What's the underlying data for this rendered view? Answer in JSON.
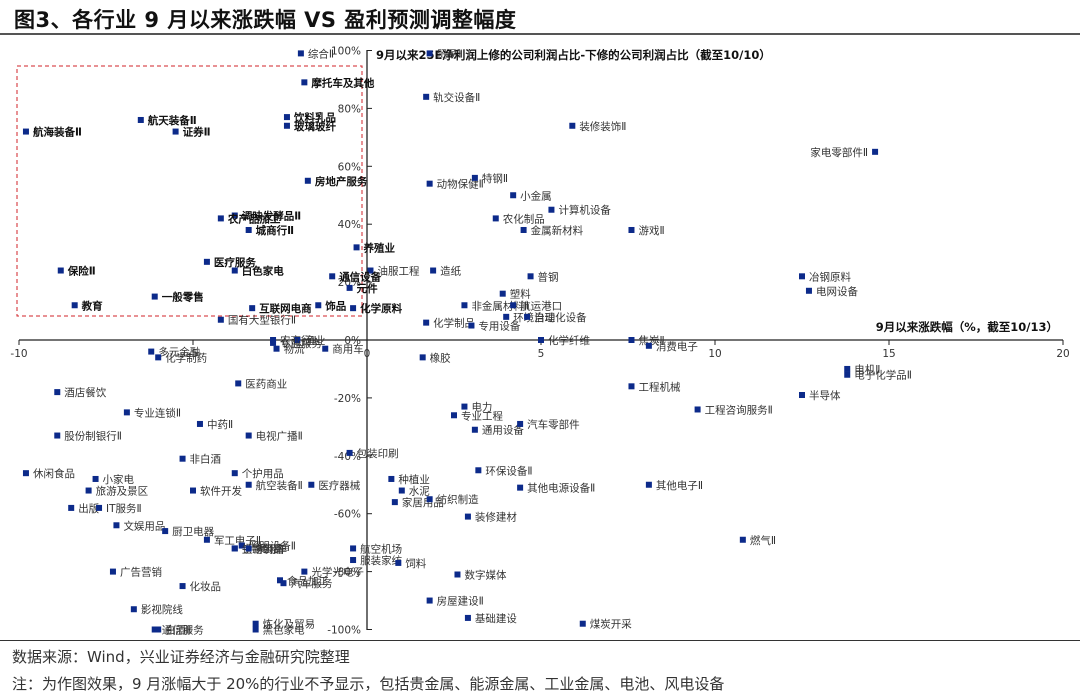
{
  "figure": {
    "title": "图3、各行业 9 月以来涨跌幅 VS 盈利预测调整幅度",
    "source": "数据来源：Wind，兴业证券经济与金融研究院整理",
    "note": "注：为作图效果，9 月涨幅大于 20%的行业不予显示，包括贵金属、能源金属、工业金属、电池、风电设备"
  },
  "chart_data": {
    "type": "scatter",
    "title": "图3、各行业 9 月以来涨跌幅 VS 盈利预测调整幅度",
    "xlabel": "9月以来涨跌幅（%，截至10/13）",
    "ylabel": "9月以来25E净利润上修的公司利润占比-下修的公司利润占比（截至10/10）",
    "xlim": [
      -10,
      20
    ],
    "ylim": [
      -100,
      100
    ],
    "xticks": [
      "-10",
      "-5",
      "0",
      "5",
      "10",
      "15",
      "20"
    ],
    "yticks": [
      "100%",
      "80%",
      "60%",
      "40%",
      "20%",
      "0%",
      "-20%",
      "-40%",
      "-60%",
      "-80%",
      "-100%"
    ],
    "grid": false,
    "legend": "none",
    "annotation": "red dashed box highlights industries with negative returns but positive earnings revisions (bold labels)",
    "points": [
      {
        "name": "综合Ⅱ",
        "x": -1.9,
        "y": 99,
        "bold": false
      },
      {
        "name": "贸易Ⅱ",
        "x": 1.8,
        "y": 99,
        "bold": false
      },
      {
        "name": "摩托车及其他",
        "x": -1.8,
        "y": 89,
        "bold": true
      },
      {
        "name": "饮料乳品",
        "x": -2.3,
        "y": 77,
        "bold": true
      },
      {
        "name": "玻璃玻纤",
        "x": -2.3,
        "y": 74,
        "bold": true
      },
      {
        "name": "航天装备Ⅱ",
        "x": -6.5,
        "y": 76,
        "bold": true
      },
      {
        "name": "证券Ⅱ",
        "x": -5.5,
        "y": 72,
        "bold": true
      },
      {
        "name": "航海装备Ⅱ",
        "x": -9.8,
        "y": 72,
        "bold": true
      },
      {
        "name": "轨交设备Ⅱ",
        "x": 1.7,
        "y": 84,
        "bold": false
      },
      {
        "name": "装修装饰Ⅱ",
        "x": 5.9,
        "y": 74,
        "bold": false
      },
      {
        "name": "家电零部件Ⅱ",
        "x": 14.6,
        "y": 65,
        "bold": false
      },
      {
        "name": "房地产服务",
        "x": -1.7,
        "y": 55,
        "bold": true
      },
      {
        "name": "动物保健Ⅱ",
        "x": 1.8,
        "y": 54,
        "bold": false
      },
      {
        "name": "特钢Ⅱ",
        "x": 3.1,
        "y": 56,
        "bold": false
      },
      {
        "name": "小金属",
        "x": 4.2,
        "y": 50,
        "bold": false
      },
      {
        "name": "计算机设备",
        "x": 5.3,
        "y": 45,
        "bold": false
      },
      {
        "name": "农化制品",
        "x": 3.7,
        "y": 42,
        "bold": false
      },
      {
        "name": "金属新材料",
        "x": 4.5,
        "y": 38,
        "bold": false
      },
      {
        "name": "游戏Ⅱ",
        "x": 7.6,
        "y": 38,
        "bold": false
      },
      {
        "name": "调味发酵品Ⅱ",
        "x": -3.8,
        "y": 43,
        "bold": true
      },
      {
        "name": "农产品加工",
        "x": -4.2,
        "y": 42,
        "bold": true
      },
      {
        "name": "城商行Ⅱ",
        "x": -3.4,
        "y": 38,
        "bold": true
      },
      {
        "name": "养殖业",
        "x": -0.3,
        "y": 32,
        "bold": true
      },
      {
        "name": "油服工程",
        "x": 0.1,
        "y": 24,
        "bold": false
      },
      {
        "name": "造纸",
        "x": 1.9,
        "y": 24,
        "bold": false
      },
      {
        "name": "普钢",
        "x": 4.7,
        "y": 22,
        "bold": false
      },
      {
        "name": "冶钢原料",
        "x": 12.5,
        "y": 22,
        "bold": false
      },
      {
        "name": "电网设备",
        "x": 12.7,
        "y": 17,
        "bold": false
      },
      {
        "name": "医疗服务",
        "x": -4.6,
        "y": 27,
        "bold": true
      },
      {
        "name": "白色家电",
        "x": -3.8,
        "y": 24,
        "bold": true
      },
      {
        "name": "保险Ⅱ",
        "x": -8.8,
        "y": 24,
        "bold": true
      },
      {
        "name": "通信设备",
        "x": -1.0,
        "y": 22,
        "bold": true
      },
      {
        "name": "塑料",
        "x": 3.9,
        "y": 16,
        "bold": false
      },
      {
        "name": "非金属材料Ⅱ",
        "x": 2.8,
        "y": 12,
        "bold": false
      },
      {
        "name": "航运港口",
        "x": 4.2,
        "y": 12,
        "bold": false
      },
      {
        "name": "环境治理",
        "x": 4.0,
        "y": 8,
        "bold": false
      },
      {
        "name": "自动化设备",
        "x": 4.6,
        "y": 8,
        "bold": false
      },
      {
        "name": "一般零售",
        "x": -6.1,
        "y": 15,
        "bold": true
      },
      {
        "name": "互联网电商",
        "x": -3.3,
        "y": 11,
        "bold": true
      },
      {
        "name": "饰品",
        "x": -1.4,
        "y": 12,
        "bold": true
      },
      {
        "name": "元件",
        "x": -0.5,
        "y": 18,
        "bold": true
      },
      {
        "name": "化学原料",
        "x": -0.4,
        "y": 11,
        "bold": true
      },
      {
        "name": "教育",
        "x": -8.4,
        "y": 12,
        "bold": true
      },
      {
        "name": "化学制品",
        "x": 1.7,
        "y": 6,
        "bold": false
      },
      {
        "name": "专用设备",
        "x": 3.0,
        "y": 5,
        "bold": false
      },
      {
        "name": "国有大型银行Ⅱ",
        "x": -4.2,
        "y": 7,
        "bold": false
      },
      {
        "name": "化学纤维",
        "x": 5.0,
        "y": 0,
        "bold": false
      },
      {
        "name": "焦炭Ⅱ",
        "x": 7.6,
        "y": 0,
        "bold": false
      },
      {
        "name": "消费电子",
        "x": 8.1,
        "y": -2,
        "bold": false
      },
      {
        "name": "农商行Ⅱ",
        "x": -2.7,
        "y": 0,
        "bold": false
      },
      {
        "name": "渔业",
        "x": -2.0,
        "y": 0,
        "bold": false
      },
      {
        "name": "专业服务",
        "x": -2.7,
        "y": -1,
        "bold": false
      },
      {
        "name": "物流",
        "x": -2.6,
        "y": -3,
        "bold": false
      },
      {
        "name": "商用车",
        "x": -1.2,
        "y": -3,
        "bold": false
      },
      {
        "name": "多元金融",
        "x": -6.2,
        "y": -4,
        "bold": false
      },
      {
        "name": "化学制药",
        "x": -6.0,
        "y": -6,
        "bold": false
      },
      {
        "name": "橡胶",
        "x": 1.6,
        "y": -6,
        "bold": false
      },
      {
        "name": "电机Ⅱ",
        "x": 13.8,
        "y": -10,
        "bold": false
      },
      {
        "name": "电子化学品Ⅱ",
        "x": 13.8,
        "y": -12,
        "bold": false
      },
      {
        "name": "工程机械",
        "x": 7.6,
        "y": -16,
        "bold": false
      },
      {
        "name": "半导体",
        "x": 12.5,
        "y": -19,
        "bold": false
      },
      {
        "name": "工程咨询服务Ⅱ",
        "x": 9.5,
        "y": -24,
        "bold": false
      },
      {
        "name": "酒店餐饮",
        "x": -8.9,
        "y": -18,
        "bold": false
      },
      {
        "name": "医药商业",
        "x": -3.7,
        "y": -15,
        "bold": false
      },
      {
        "name": "专业连锁Ⅱ",
        "x": -6.9,
        "y": -25,
        "bold": false
      },
      {
        "name": "中药Ⅱ",
        "x": -4.8,
        "y": -29,
        "bold": false
      },
      {
        "name": "电视广播Ⅱ",
        "x": -3.4,
        "y": -33,
        "bold": false
      },
      {
        "name": "股份制银行Ⅱ",
        "x": -8.9,
        "y": -33,
        "bold": false
      },
      {
        "name": "电力",
        "x": 2.8,
        "y": -23,
        "bold": false
      },
      {
        "name": "专业工程",
        "x": 2.5,
        "y": -26,
        "bold": false
      },
      {
        "name": "通用设备",
        "x": 3.1,
        "y": -31,
        "bold": false
      },
      {
        "name": "汽车零部件",
        "x": 4.4,
        "y": -29,
        "bold": false
      },
      {
        "name": "包装印刷",
        "x": -0.5,
        "y": -39,
        "bold": false
      },
      {
        "name": "非白酒",
        "x": -5.3,
        "y": -41,
        "bold": false
      },
      {
        "name": "休闲食品",
        "x": -9.8,
        "y": -46,
        "bold": false
      },
      {
        "name": "小家电",
        "x": -7.8,
        "y": -48,
        "bold": false
      },
      {
        "name": "个护用品",
        "x": -3.8,
        "y": -46,
        "bold": false
      },
      {
        "name": "航空装备Ⅱ",
        "x": -3.4,
        "y": -50,
        "bold": false
      },
      {
        "name": "软件开发",
        "x": -5.0,
        "y": -52,
        "bold": false
      },
      {
        "name": "医疗器械",
        "x": -1.6,
        "y": -50,
        "bold": false
      },
      {
        "name": "种植业",
        "x": 0.7,
        "y": -48,
        "bold": false
      },
      {
        "name": "水泥",
        "x": 1.0,
        "y": -52,
        "bold": false
      },
      {
        "name": "环保设备Ⅱ",
        "x": 3.2,
        "y": -45,
        "bold": false
      },
      {
        "name": "其他电源设备Ⅱ",
        "x": 4.4,
        "y": -51,
        "bold": false
      },
      {
        "name": "其他电子Ⅱ",
        "x": 8.1,
        "y": -50,
        "bold": false
      },
      {
        "name": "旅游及景区",
        "x": -8.0,
        "y": -52,
        "bold": false
      },
      {
        "name": "出版",
        "x": -8.5,
        "y": -58,
        "bold": false
      },
      {
        "name": "IT服务Ⅱ",
        "x": -7.7,
        "y": -58,
        "bold": false
      },
      {
        "name": "文娱用品",
        "x": -7.2,
        "y": -64,
        "bold": false
      },
      {
        "name": "家居用品",
        "x": 0.8,
        "y": -56,
        "bold": false
      },
      {
        "name": "纺织制造",
        "x": 1.8,
        "y": -55,
        "bold": false
      },
      {
        "name": "装修建材",
        "x": 2.9,
        "y": -61,
        "bold": false
      },
      {
        "name": "厨卫电器",
        "x": -5.8,
        "y": -66,
        "bold": false
      },
      {
        "name": "军工电子Ⅱ",
        "x": -4.6,
        "y": -69,
        "bold": false
      },
      {
        "name": "铁路公路",
        "x": -3.8,
        "y": -72,
        "bold": false
      },
      {
        "name": "照明设备Ⅱ",
        "x": -3.6,
        "y": -71,
        "bold": false
      },
      {
        "name": "生物制品",
        "x": -3.8,
        "y": -72,
        "bold": false
      },
      {
        "name": "乘用车",
        "x": -3.4,
        "y": -72,
        "bold": false
      },
      {
        "name": "航空机场",
        "x": -0.4,
        "y": -72,
        "bold": false
      },
      {
        "name": "服装家纺",
        "x": -0.4,
        "y": -76,
        "bold": false
      },
      {
        "name": "饲料",
        "x": 0.9,
        "y": -77,
        "bold": false
      },
      {
        "name": "数字媒体",
        "x": 2.6,
        "y": -81,
        "bold": false
      },
      {
        "name": "燃气Ⅱ",
        "x": 10.8,
        "y": -69,
        "bold": false
      },
      {
        "name": "广告营销",
        "x": -7.3,
        "y": -80,
        "bold": false
      },
      {
        "name": "光学光电子",
        "x": -1.8,
        "y": -80,
        "bold": false
      },
      {
        "name": "汽车服务",
        "x": -2.4,
        "y": -84,
        "bold": false
      },
      {
        "name": "食品加工",
        "x": -2.5,
        "y": -83,
        "bold": false
      },
      {
        "name": "化妆品",
        "x": -5.3,
        "y": -85,
        "bold": false
      },
      {
        "name": "房屋建设Ⅱ",
        "x": 1.8,
        "y": -90,
        "bold": false
      },
      {
        "name": "基础建设",
        "x": 2.9,
        "y": -96,
        "bold": false
      },
      {
        "name": "煤炭开采",
        "x": 6.2,
        "y": -98,
        "bold": false
      },
      {
        "name": "影视院线",
        "x": -6.7,
        "y": -93,
        "bold": false
      },
      {
        "name": "炼化及贸易",
        "x": -3.2,
        "y": -98,
        "bold": false
      },
      {
        "name": "黑色家电",
        "x": -3.2,
        "y": -100,
        "bold": false
      },
      {
        "name": "通信服务",
        "x": -6.1,
        "y": -100,
        "bold": false
      },
      {
        "name": "白酒Ⅱ",
        "x": -6.0,
        "y": -100,
        "bold": false
      }
    ]
  },
  "colors": {
    "marker": "#0c2a8a",
    "highlight_box": "#d0232a",
    "axis": "#222222"
  }
}
